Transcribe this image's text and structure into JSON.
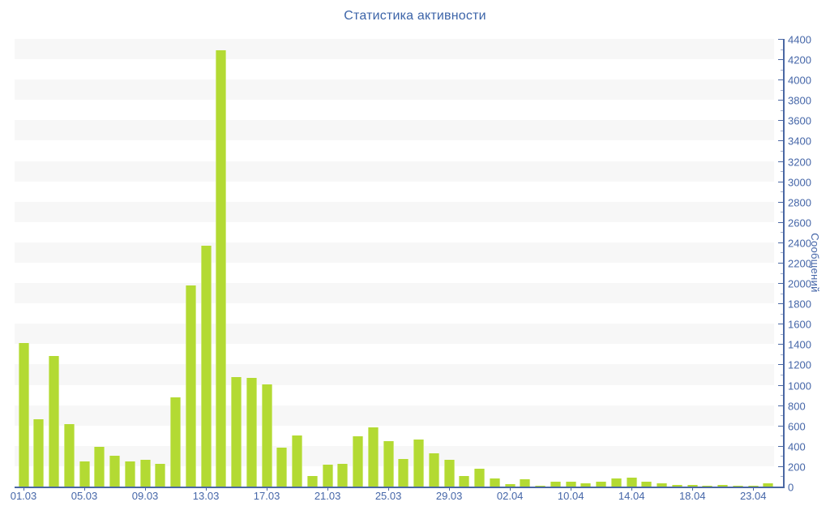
{
  "chart_data": {
    "type": "bar",
    "title": "Статистика активности",
    "ylabel": "Сообщений",
    "xlabel": "",
    "legend": "none",
    "grid": "alternating horizontal bands every 200 units",
    "y_axis": {
      "min": 0,
      "max": 4400,
      "major_step": 200,
      "minor_step": 100,
      "side": "right"
    },
    "x_tick_every": 4,
    "x_tick_labels": [
      "01.03",
      "05.03",
      "09.03",
      "13.03",
      "17.03",
      "21.03",
      "25.03",
      "29.03",
      "02.04",
      "10.04",
      "14.04",
      "18.04",
      "23.04"
    ],
    "values": [
      1410,
      660,
      1280,
      610,
      245,
      390,
      300,
      245,
      260,
      220,
      880,
      1980,
      2370,
      4285,
      1075,
      1070,
      1005,
      380,
      505,
      100,
      215,
      225,
      495,
      580,
      445,
      272,
      460,
      330,
      265,
      100,
      175,
      80,
      25,
      70,
      10,
      45,
      50,
      35,
      45,
      80,
      90,
      45,
      30,
      20,
      15,
      12,
      15,
      10,
      12,
      30
    ]
  },
  "colors": {
    "bar_fill": "#b3da33",
    "bar_edge": "#cfe87c",
    "axis_line": "#4a67a3",
    "tick_label": "#4566a8",
    "title": "#3c64a8",
    "minor_tick": "#9fadcc",
    "band_gray": "#f7f7f7",
    "band_white": "#ffffff",
    "background": "#ffffff"
  }
}
